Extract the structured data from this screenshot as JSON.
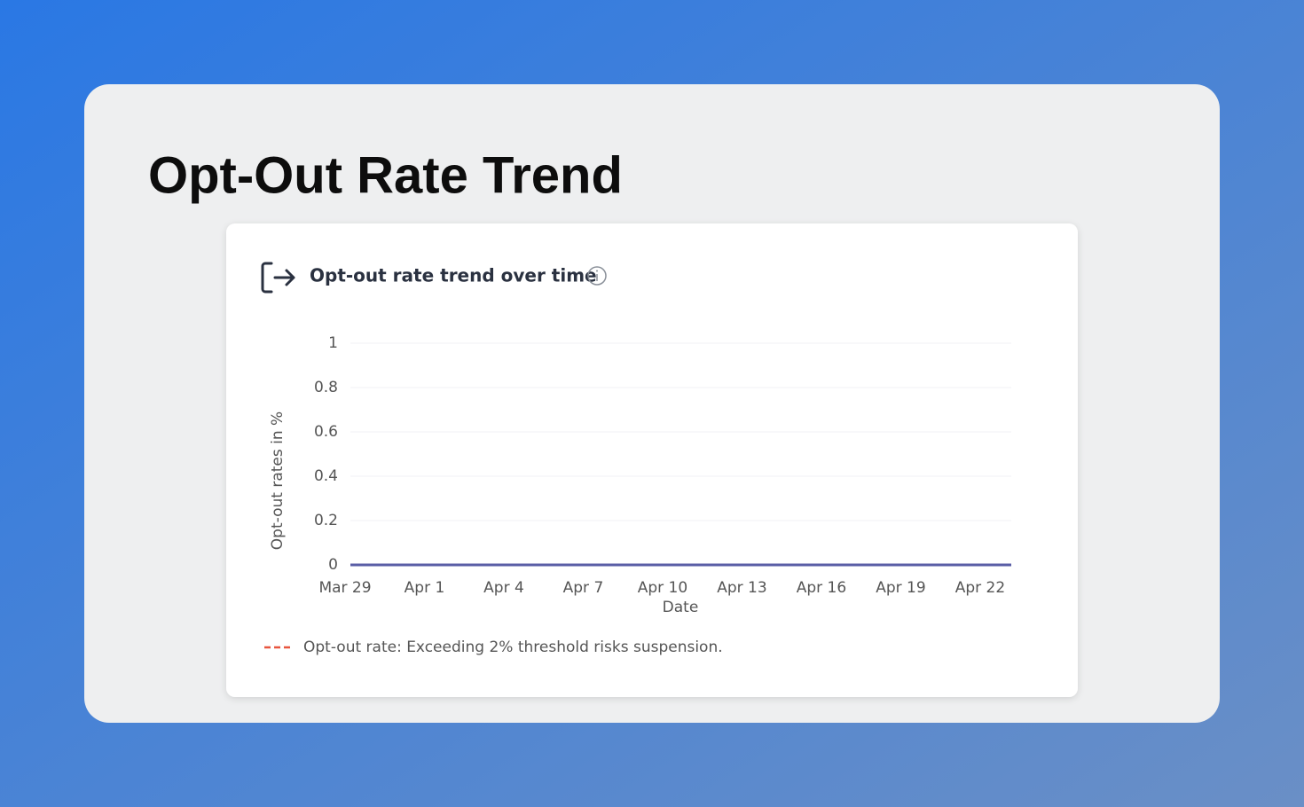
{
  "page": {
    "heading": "Opt-Out Rate Trend"
  },
  "chart_data": {
    "type": "line",
    "title": "Opt-out rate trend over time",
    "x_label": "Date",
    "y_label": "Opt-out rates in %",
    "categories": [
      "Mar 29",
      null,
      null,
      "Apr 1",
      null,
      null,
      "Apr 4",
      null,
      null,
      "Apr 7",
      null,
      null,
      "Apr 10",
      null,
      null,
      "Apr 13",
      null,
      null,
      "Apr 16",
      null,
      null,
      "Apr 19",
      null,
      null,
      "Apr 22",
      null
    ],
    "values": [
      0,
      0,
      0,
      0,
      0,
      0,
      0,
      0,
      0,
      0,
      0,
      0,
      0,
      0,
      0,
      0,
      0,
      0,
      0,
      0,
      0,
      0,
      0,
      0,
      0,
      0
    ],
    "color": "#5a5ea6",
    "ylim": [
      0,
      1
    ],
    "yticks": [
      0,
      0.2,
      0.4,
      0.6,
      0.8,
      1
    ],
    "grid": true,
    "legend": {
      "label": "Opt-out rate: Exceeding 2% threshold risks suspension.",
      "color": "#e8553f"
    }
  }
}
